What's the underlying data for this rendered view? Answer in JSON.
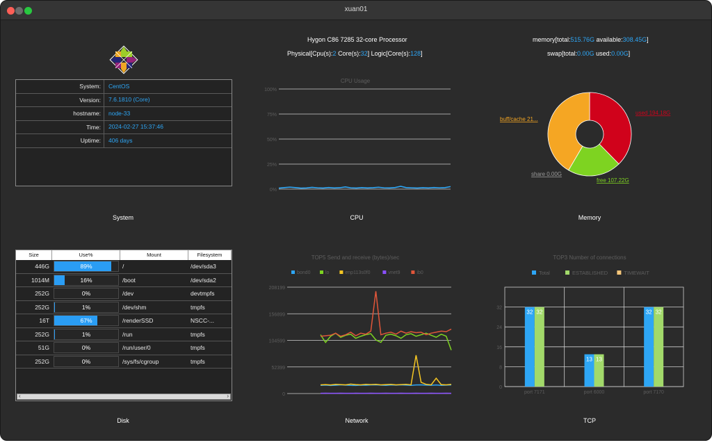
{
  "window": {
    "title": "xuan01"
  },
  "cpu_info": {
    "model": "Hygon C86 7285 32-core Processor",
    "physical_prefix": "Physical[Cpu(s):",
    "physical_cpus": "2",
    "cores_prefix": "Core(s):",
    "cores": "32",
    "logic_prefix": "]  Logic[Core(s):",
    "logic_cores": "128",
    "close": "]"
  },
  "memory_info": {
    "mem_prefix": "memory[total:",
    "mem_total": "515.76G",
    "mem_avail_prefix": " available:",
    "mem_available": "308.45G",
    "mem_close": "]",
    "swap_prefix": "swap[total:",
    "swap_total": "0.00G",
    "swap_used_prefix": "  used:",
    "swap_used": "0.00G",
    "swap_close": "]"
  },
  "system": {
    "rows": [
      {
        "key": "System:",
        "value": "CentOS"
      },
      {
        "key": "Version:",
        "value": "7.6.1810 (Core)"
      },
      {
        "key": "hostname:",
        "value": "node-33"
      },
      {
        "key": "Time:",
        "value": "2024-02-27 15:37:46"
      },
      {
        "key": "Uptime:",
        "value": "406 days"
      }
    ]
  },
  "captions": {
    "system": "System",
    "cpu": "CPU",
    "memory": "Memory",
    "disk": "Disk",
    "network": "Network",
    "tcp": "TCP"
  },
  "disk": {
    "headers": [
      "Size",
      "Use%",
      "Mount",
      "Filesystem"
    ],
    "rows": [
      {
        "size": "446G",
        "use": "89%",
        "pct": 0.89,
        "mount": "/",
        "fs": "/dev/sda3"
      },
      {
        "size": "1014M",
        "use": "16%",
        "pct": 0.16,
        "mount": "/boot",
        "fs": "/dev/sda2"
      },
      {
        "size": "252G",
        "use": "0%",
        "pct": 0.0,
        "mount": "/dev",
        "fs": "devtmpfs"
      },
      {
        "size": "252G",
        "use": "1%",
        "pct": 0.01,
        "mount": "/dev/shm",
        "fs": "tmpfs"
      },
      {
        "size": "16T",
        "use": "67%",
        "pct": 0.67,
        "mount": "/renderSSD",
        "fs": "NSCC-..."
      },
      {
        "size": "252G",
        "use": "1%",
        "pct": 0.01,
        "mount": "/run",
        "fs": "tmpfs"
      },
      {
        "size": "51G",
        "use": "0%",
        "pct": 0.0,
        "mount": "/run/user/0",
        "fs": "tmpfs"
      },
      {
        "size": "252G",
        "use": "0%",
        "pct": 0.0,
        "mount": "/sys/fs/cgroup",
        "fs": "tmpfs"
      }
    ]
  },
  "chart_data": [
    {
      "type": "line",
      "title": "CPU Usage",
      "ylim": [
        0,
        100
      ],
      "yticks": [
        "0%",
        "25%",
        "50%",
        "75%",
        "100%"
      ],
      "series": [
        {
          "color": "#2ea6f5",
          "values": [
            1,
            1.5,
            2,
            1.5,
            1,
            1.2,
            1.8,
            1.3,
            1.1,
            1.6,
            1.2,
            1.4,
            2.2,
            1.3,
            1.1,
            1.5,
            1.2,
            1.4,
            1.9,
            1.3,
            1.2,
            1.6,
            2.8,
            1.5,
            1.3,
            1.1,
            1.4,
            1.2,
            1.6,
            1.3,
            1.5,
            2.5
          ]
        }
      ]
    },
    {
      "type": "pie",
      "slices": [
        {
          "label": "used 194.18G",
          "value": 194.18,
          "color": "#d0021b"
        },
        {
          "label": "free 107.22G",
          "value": 107.22,
          "color": "#7ed321"
        },
        {
          "label": "share 0.00G",
          "value": 0.0,
          "color": "#9b9b9b"
        },
        {
          "label": "buff/cache 21...",
          "value": 214.36,
          "color": "#f5a623"
        }
      ]
    },
    {
      "type": "line",
      "title": "TOP5 Send and receive (bytes)/sec",
      "legend": [
        "bond0",
        "lo",
        "enp113s0f0",
        "vnet9",
        "ib0"
      ],
      "ylim": [
        0,
        208000
      ],
      "yticks": [
        "0",
        "52399",
        "104599",
        "156899",
        "208199"
      ],
      "series": [
        {
          "name": "bond0",
          "color": "#2ea6f5",
          "values": [
            16000,
            16500,
            15800,
            16200,
            17000,
            16500,
            16000,
            15800,
            16500,
            16200,
            16800,
            17000,
            16500,
            16000,
            16800,
            16500,
            17000,
            16500,
            16000,
            16800,
            17000,
            16500,
            16200,
            16800,
            16000,
            16500,
            16800
          ]
        },
        {
          "name": "lo",
          "color": "#7ed321",
          "values": [
            115000,
            100000,
            112000,
            118000,
            110000,
            114000,
            116000,
            108000,
            112000,
            115000,
            117000,
            105000,
            100000,
            114000,
            116000,
            113000,
            108000,
            115000,
            117000,
            112000,
            115000,
            118000,
            114000,
            110000,
            116000,
            112000,
            85000
          ]
        },
        {
          "name": "enp113s0f0",
          "color": "#f5c623",
          "values": [
            17000,
            17500,
            16800,
            18000,
            17500,
            17000,
            18500,
            17500,
            17000,
            18000,
            17500,
            18000,
            17000,
            17500,
            18000,
            17000,
            17500,
            18000,
            17000,
            75000,
            22000,
            18000,
            17000,
            30000,
            17500,
            17000,
            18000
          ]
        },
        {
          "name": "vnet9",
          "color": "#8a4fff",
          "values": [
            500,
            600,
            500,
            550,
            600,
            500,
            550,
            600,
            500,
            550,
            600,
            500,
            550,
            600,
            500,
            550,
            600,
            500,
            550,
            600,
            500,
            550,
            600,
            500,
            550,
            600,
            500
          ]
        },
        {
          "name": "ib0",
          "color": "#e0563a",
          "values": [
            112000,
            113000,
            114000,
            118000,
            112000,
            115000,
            120000,
            113000,
            118000,
            116000,
            122000,
            200000,
            115000,
            118000,
            120000,
            116000,
            122000,
            118000,
            121000,
            119000,
            120000,
            115000,
            118000,
            120000,
            122000,
            121000,
            126000
          ]
        }
      ]
    },
    {
      "type": "bar",
      "title": "TOP3 Number of connections",
      "legend": [
        "Total",
        "ESTABLISHED",
        "TIMEWAIT"
      ],
      "categories": [
        "port 7171",
        "port 6000",
        "port 7170"
      ],
      "ylim": [
        0,
        40
      ],
      "yticks": [
        "0",
        "8",
        "16",
        "24",
        "32"
      ],
      "series": [
        {
          "name": "Total",
          "color": "#2ea6f5",
          "values": [
            32,
            13,
            32
          ]
        },
        {
          "name": "ESTABLISHED",
          "color": "#a2d96a",
          "values": [
            32,
            13,
            32
          ]
        },
        {
          "name": "TIMEWAIT",
          "color": "#f5c67a",
          "values": [
            0,
            0,
            0
          ]
        }
      ]
    }
  ]
}
